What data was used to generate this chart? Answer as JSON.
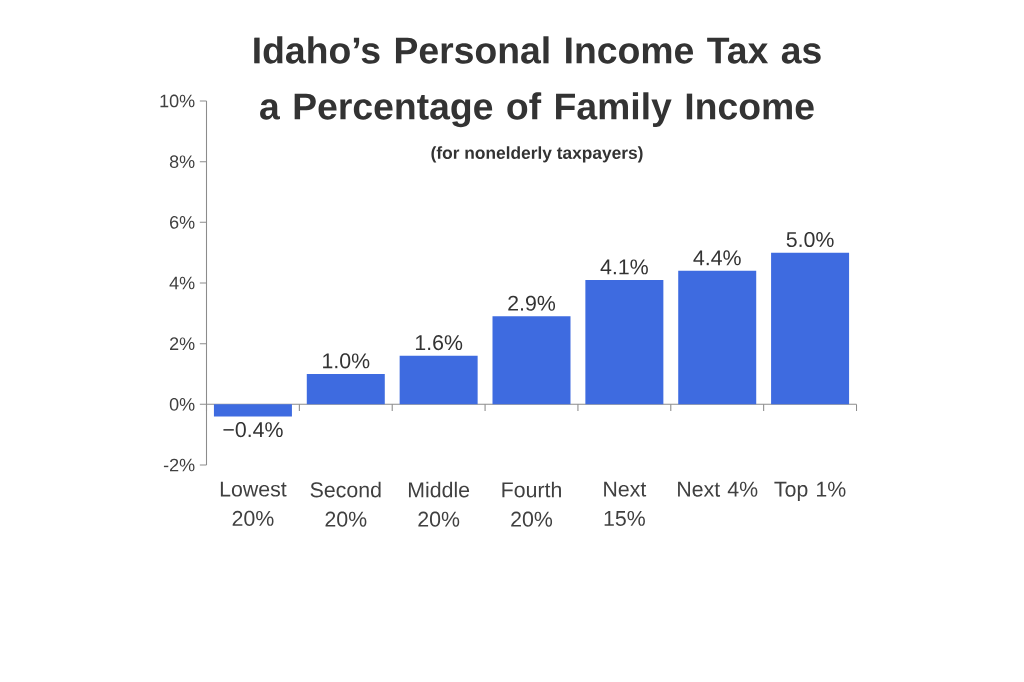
{
  "chart_data": {
    "type": "bar",
    "title": "Idaho’s Personal Income Tax as a Percentage of Family Income",
    "subtitle": "(for nonelderly taxpayers)",
    "categories": [
      "Lowest 20%",
      "Second 20%",
      "Middle 20%",
      "Fourth 20%",
      "Next 15%",
      "Next 4%",
      "Top 1%"
    ],
    "values": [
      -0.4,
      1.0,
      1.6,
      2.9,
      4.1,
      4.4,
      5.0
    ],
    "value_labels": [
      "−0.4%",
      "1.0%",
      "1.6%",
      "2.9%",
      "4.1%",
      "4.4%",
      "5.0%"
    ],
    "color": "#3e6be0",
    "ylim": [
      -2,
      10
    ],
    "yticks": [
      {
        "value": -2,
        "label": "-2%"
      },
      {
        "value": 0,
        "label": "0%"
      },
      {
        "value": 2,
        "label": "2%"
      },
      {
        "value": 4,
        "label": "4%"
      },
      {
        "value": 6,
        "label": "6%"
      },
      {
        "value": 8,
        "label": "8%"
      },
      {
        "value": 10,
        "label": "10%"
      }
    ]
  }
}
